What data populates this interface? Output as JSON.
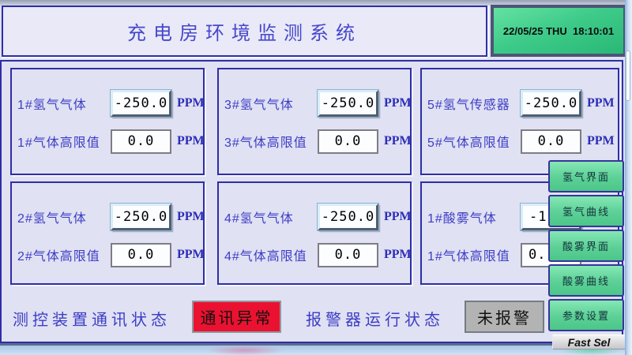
{
  "title": "充电房环境监测系统",
  "clock": "22/05/25 THU  18:10:01",
  "panels": [
    {
      "label": "1#氢气气体",
      "value": "-250.0",
      "unit": "PPM",
      "limit_label": "1#气体高限值",
      "limit_value": "0.0",
      "limit_unit": "PPM"
    },
    {
      "label": "3#氢气气体",
      "value": "-250.0",
      "unit": "PPM",
      "limit_label": "3#气体高限值",
      "limit_value": "0.0",
      "limit_unit": "PPM"
    },
    {
      "label": "5#氢气传感器",
      "value": "-250.0",
      "unit": "PPM",
      "limit_label": "5#气体高限值",
      "limit_value": "0.0",
      "limit_unit": "PPM"
    },
    {
      "label": "2#氢气气体",
      "value": "-250.0",
      "unit": "PPM",
      "limit_label": "2#气体高限值",
      "limit_value": "0.0",
      "limit_unit": "PPM"
    },
    {
      "label": "4#氢气气体",
      "value": "-250.0",
      "unit": "PPM",
      "limit_label": "4#气体高限值",
      "limit_value": "0.0",
      "limit_unit": "PPM"
    },
    {
      "label": "1#酸雾气体",
      "value": "-1.",
      "unit": "",
      "limit_label": "1#气体高限值",
      "limit_value": "0.",
      "limit_unit": ""
    }
  ],
  "status": {
    "comm_label": "测控装置通讯状态",
    "comm_value": "通讯异常",
    "alarm_label": "报警器运行状态",
    "alarm_value": "未报警"
  },
  "nav": {
    "buttons": [
      {
        "label": "氢气界面"
      },
      {
        "label": "氢气曲线"
      },
      {
        "label": "酸雾界面"
      },
      {
        "label": "酸雾曲线"
      },
      {
        "label": "参数设置"
      }
    ],
    "fast_sel": "Fast Sel"
  },
  "colors": {
    "alarm_red": "#ea1230",
    "ok_gray": "#b3b3b3",
    "button_green": "#5cd096",
    "clock_green": "#3ecb8a",
    "accent_navy": "#2e2ea6",
    "label_blue": "#3d3dc6",
    "background": "#e0e1f2"
  }
}
